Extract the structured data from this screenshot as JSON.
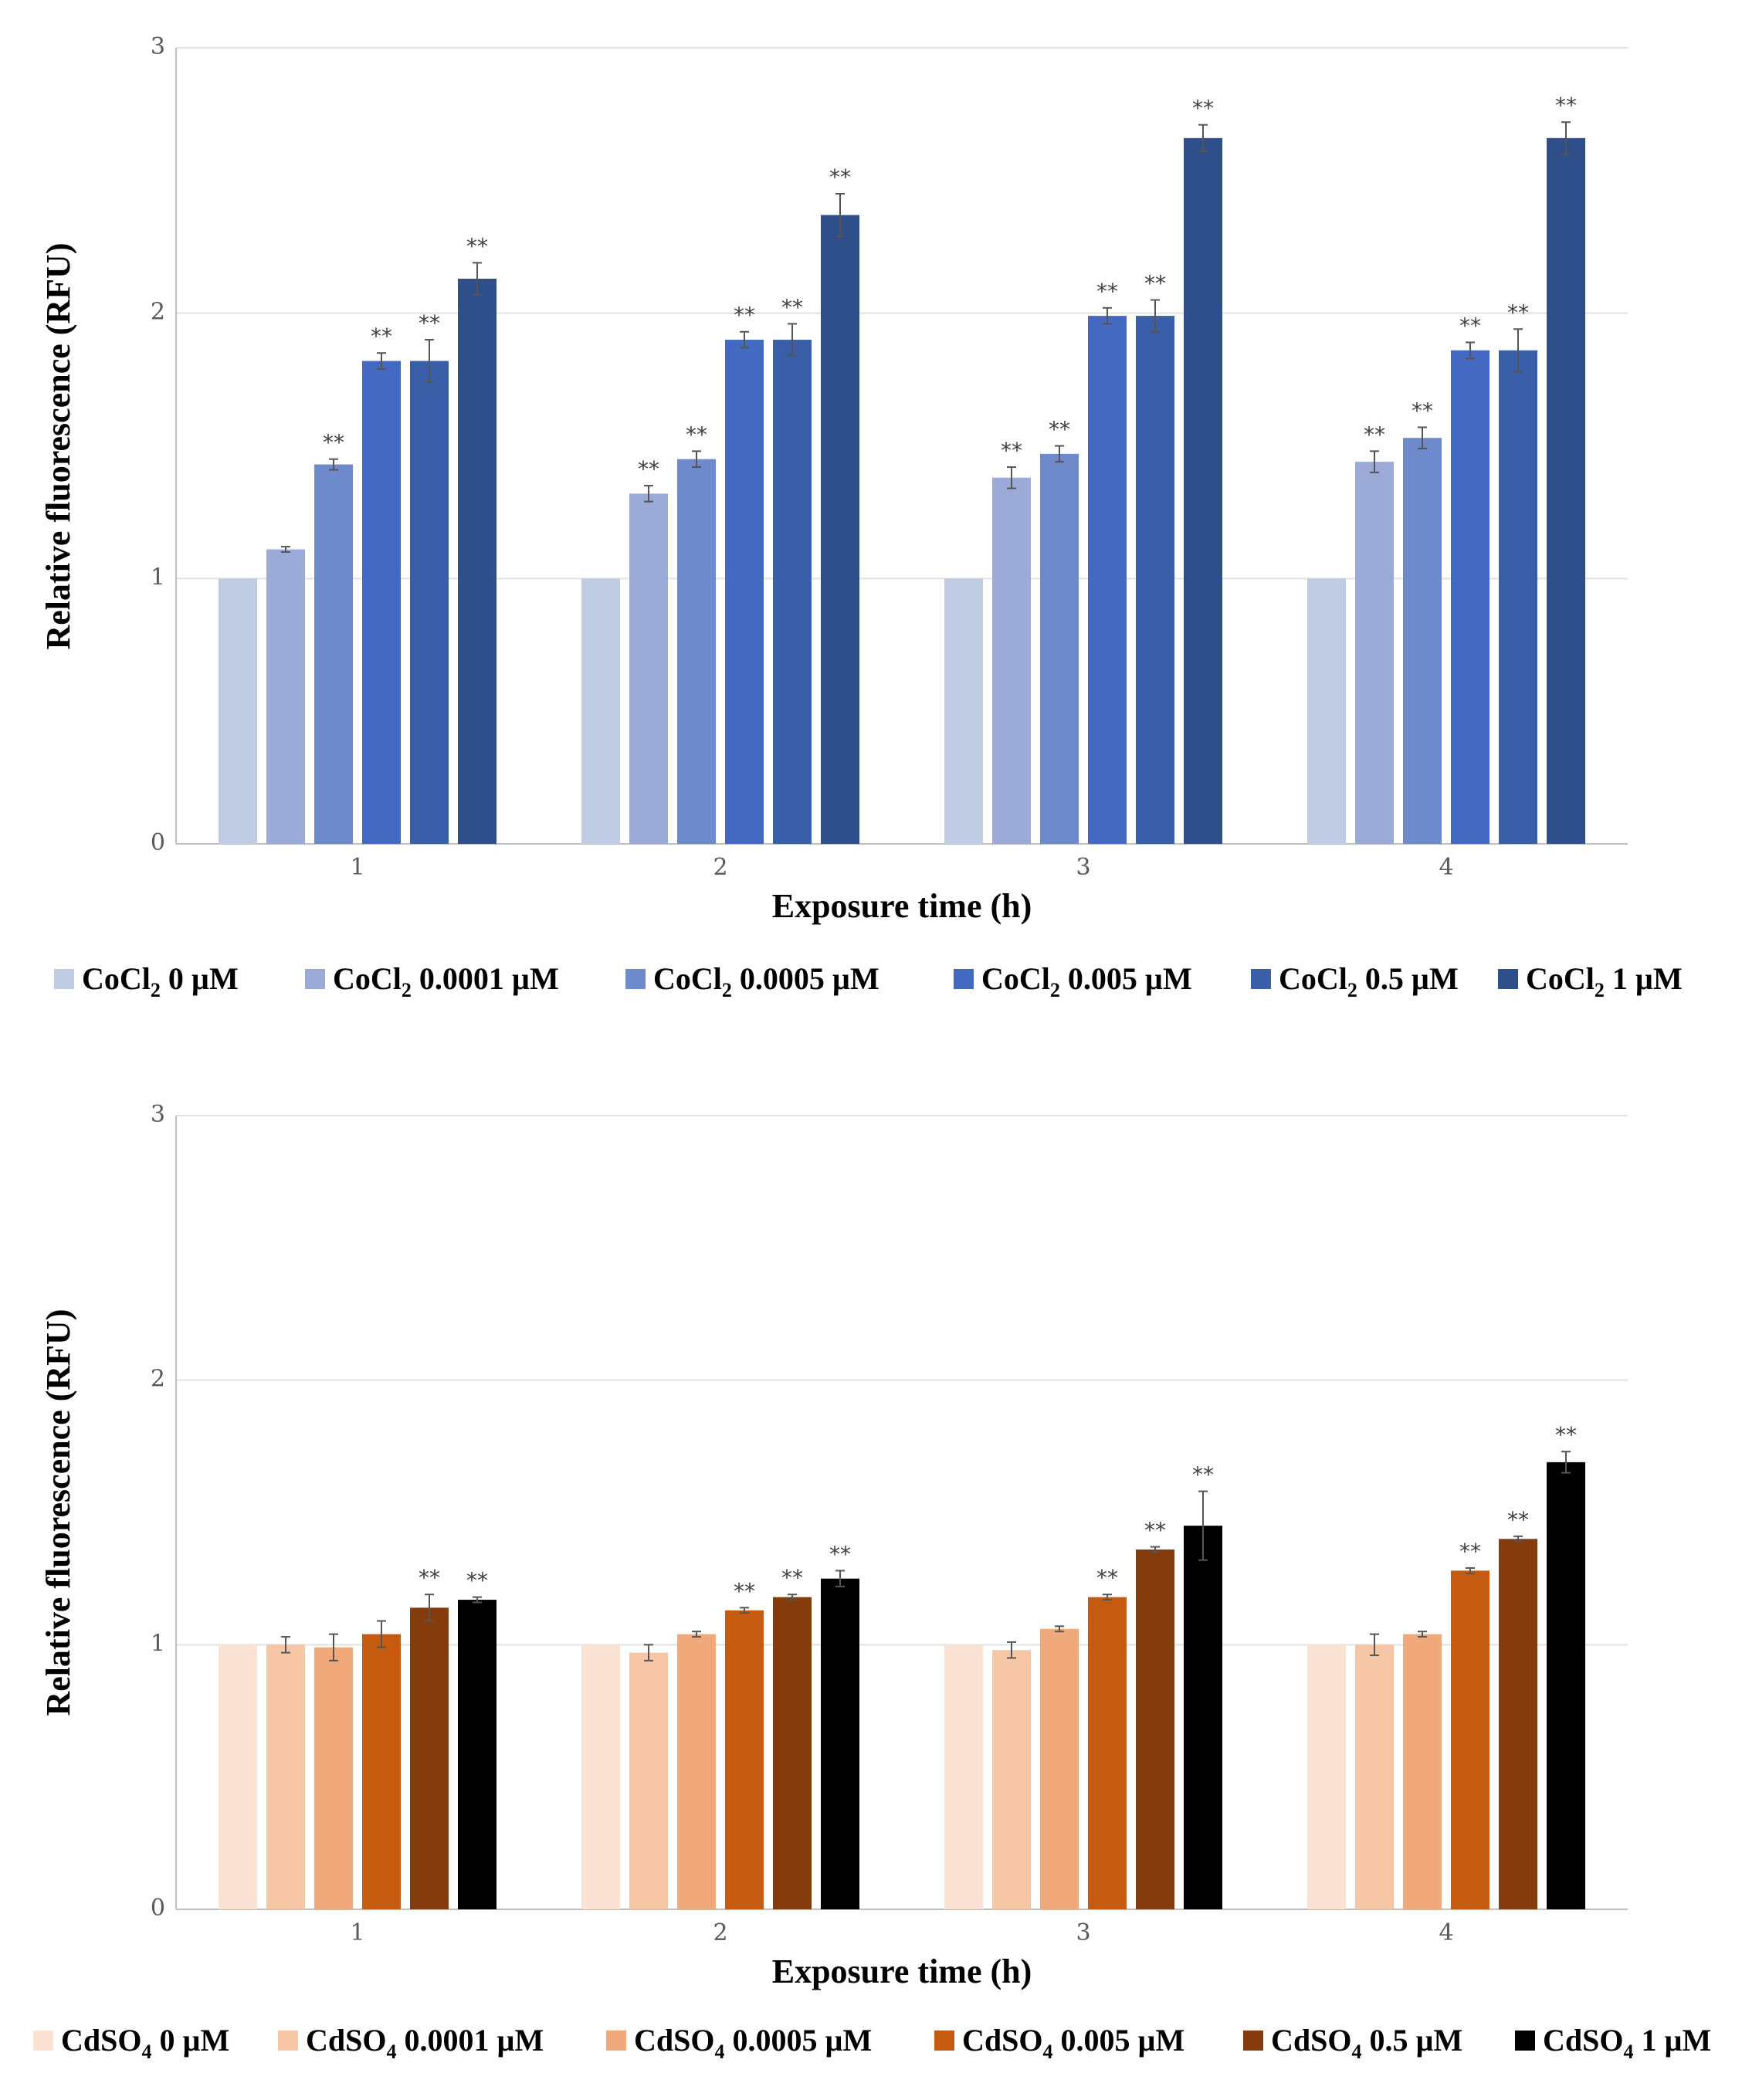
{
  "chart_data": [
    {
      "type": "bar",
      "categories": [
        "1",
        "2",
        "3",
        "4"
      ],
      "xlabel": "Exposure time (h)",
      "ylabel": "Relative fluorescence (RFU)",
      "ylim": [
        0,
        3
      ],
      "yticks": [
        "0",
        "1",
        "2",
        "3"
      ],
      "compound": {
        "base": "CoCl",
        "sub": "2"
      },
      "series": [
        {
          "name": "CoCl2 0 µM",
          "label_rest": " 0 µM",
          "color": "#c0cbe4",
          "values": [
            1.0,
            1.0,
            1.0,
            1.0
          ],
          "errors": [
            0,
            0,
            0,
            0
          ],
          "sig": [
            "",
            "",
            "",
            ""
          ]
        },
        {
          "name": "CoCl2 0.0001 µM",
          "label_rest": " 0.0001 µM",
          "color": "#9caad7",
          "values": [
            1.11,
            1.32,
            1.38,
            1.44
          ],
          "errors": [
            0.01,
            0.03,
            0.04,
            0.04
          ],
          "sig": [
            "",
            "**",
            "**",
            "**"
          ]
        },
        {
          "name": "CoCl2 0.0005 µM",
          "label_rest": " 0.0005 µM",
          "color": "#6f8acb",
          "values": [
            1.43,
            1.45,
            1.47,
            1.53
          ],
          "errors": [
            0.02,
            0.03,
            0.03,
            0.04
          ],
          "sig": [
            "**",
            "**",
            "**",
            "**"
          ]
        },
        {
          "name": "CoCl2 0.005 µM",
          "label_rest": " 0.005 µM",
          "color": "#4369c0",
          "values": [
            1.82,
            1.9,
            1.99,
            1.86
          ],
          "errors": [
            0.03,
            0.03,
            0.03,
            0.03
          ],
          "sig": [
            "**",
            "**",
            "**",
            "**"
          ]
        },
        {
          "name": "CoCl2 0.5 µM",
          "label_rest": " 0.5 µM",
          "color": "#3b5ea8",
          "values": [
            1.82,
            1.9,
            1.99,
            1.86
          ],
          "errors": [
            0.08,
            0.06,
            0.06,
            0.08
          ],
          "sig": [
            "**",
            "**",
            "**",
            "**"
          ]
        },
        {
          "name": "CoCl2 1 µM",
          "label_rest": " 1 µM",
          "color": "#2e4f8a",
          "values": [
            2.13,
            2.37,
            2.66,
            2.66
          ],
          "errors": [
            0.06,
            0.08,
            0.05,
            0.06
          ],
          "sig": [
            "**",
            "**",
            "**",
            "**"
          ]
        }
      ]
    },
    {
      "type": "bar",
      "categories": [
        "1",
        "2",
        "3",
        "4"
      ],
      "xlabel": "Exposure time (h)",
      "ylabel": "Relative fluorescence (RFU)",
      "ylim": [
        0,
        3
      ],
      "yticks": [
        "0",
        "1",
        "2",
        "3"
      ],
      "compound": {
        "base": "CdSO",
        "sub": "4"
      },
      "series": [
        {
          "name": "CdSO4 0 µM",
          "label_rest": " 0 µM",
          "color": "#fbe3d4",
          "values": [
            1.0,
            1.0,
            1.0,
            1.0
          ],
          "errors": [
            0,
            0,
            0,
            0
          ],
          "sig": [
            "",
            "",
            "",
            ""
          ]
        },
        {
          "name": "CdSO4 0.0001 µM",
          "label_rest": " 0.0001 µM",
          "color": "#f6c6a6",
          "values": [
            1.0,
            0.97,
            0.98,
            1.0
          ],
          "errors": [
            0.03,
            0.03,
            0.03,
            0.04
          ],
          "sig": [
            "",
            "",
            "",
            ""
          ]
        },
        {
          "name": "CdSO4 0.0005 µM",
          "label_rest": " 0.0005 µM",
          "color": "#f0a97a",
          "values": [
            0.99,
            1.04,
            1.06,
            1.04
          ],
          "errors": [
            0.05,
            0.01,
            0.01,
            0.01
          ],
          "sig": [
            "",
            "",
            "",
            ""
          ]
        },
        {
          "name": "CdSO4 0.005 µM",
          "label_rest": " 0.005 µM",
          "color": "#c55a11",
          "values": [
            1.04,
            1.13,
            1.18,
            1.28
          ],
          "errors": [
            0.05,
            0.01,
            0.01,
            0.01
          ],
          "sig": [
            "",
            "**",
            "**",
            "**"
          ]
        },
        {
          "name": "CdSO4 0.5 µM",
          "label_rest": " 0.5 µM",
          "color": "#843c0c",
          "values": [
            1.14,
            1.18,
            1.36,
            1.4
          ],
          "errors": [
            0.05,
            0.01,
            0.01,
            0.01
          ],
          "sig": [
            "**",
            "**",
            "**",
            "**"
          ]
        },
        {
          "name": "CdSO4 1 µM",
          "label_rest": " 1 µM",
          "color": "#000000",
          "values": [
            1.17,
            1.25,
            1.45,
            1.69
          ],
          "errors": [
            0.01,
            0.03,
            0.13,
            0.04
          ],
          "sig": [
            "**",
            "**",
            "**",
            "**"
          ]
        }
      ]
    }
  ]
}
